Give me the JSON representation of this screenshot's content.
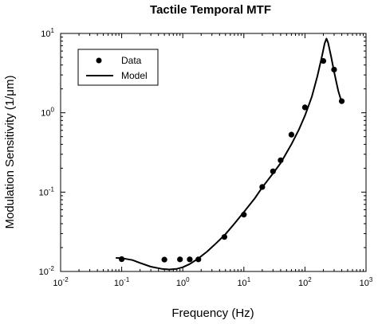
{
  "chart_data": {
    "type": "scatter",
    "title": "Tactile Temporal MTF",
    "xlabel": "Frequency (Hz)",
    "ylabel": "Modulation Sensitivity (1/μm)",
    "xscale": "log",
    "yscale": "log",
    "xlim": [
      0.01,
      1000
    ],
    "ylim": [
      0.01,
      10
    ],
    "x_ticks": [
      {
        "base": "10",
        "exp": "-2",
        "value": 0.01
      },
      {
        "base": "10",
        "exp": "-1",
        "value": 0.1
      },
      {
        "base": "10",
        "exp": "0",
        "value": 1
      },
      {
        "base": "10",
        "exp": "1",
        "value": 10
      },
      {
        "base": "10",
        "exp": "2",
        "value": 100
      },
      {
        "base": "10",
        "exp": "3",
        "value": 1000
      }
    ],
    "y_ticks": [
      {
        "base": "10",
        "exp": "-2",
        "value": 0.01
      },
      {
        "base": "10",
        "exp": "-1",
        "value": 0.1
      },
      {
        "base": "10",
        "exp": "0",
        "value": 1
      },
      {
        "base": "10",
        "exp": "1",
        "value": 10
      }
    ],
    "grid": false,
    "legend_position": "top-left",
    "series": [
      {
        "name": "Data",
        "kind": "points",
        "color": "#000000",
        "points": [
          [
            0.1,
            0.0143
          ],
          [
            0.5,
            0.0141
          ],
          [
            0.9,
            0.0142
          ],
          [
            1.3,
            0.0142
          ],
          [
            1.8,
            0.0142
          ],
          [
            4.8,
            0.0272
          ],
          [
            10,
            0.052
          ],
          [
            20,
            0.116
          ],
          [
            30,
            0.183
          ],
          [
            40,
            0.252
          ],
          [
            60,
            0.53
          ],
          [
            100,
            1.17
          ],
          [
            200,
            4.5
          ],
          [
            300,
            3.5
          ],
          [
            400,
            1.4
          ]
        ]
      },
      {
        "name": "Model",
        "kind": "line",
        "color": "#000000",
        "points": [
          [
            0.08,
            0.0148
          ],
          [
            0.1,
            0.0147
          ],
          [
            0.15,
            0.0139
          ],
          [
            0.2,
            0.0128
          ],
          [
            0.3,
            0.0115
          ],
          [
            0.45,
            0.0108
          ],
          [
            0.6,
            0.0106
          ],
          [
            0.8,
            0.0108
          ],
          [
            1.0,
            0.0113
          ],
          [
            1.3,
            0.0124
          ],
          [
            1.8,
            0.0146
          ],
          [
            2.5,
            0.0178
          ],
          [
            3.5,
            0.0226
          ],
          [
            5,
            0.0295
          ],
          [
            7,
            0.04
          ],
          [
            10,
            0.056
          ],
          [
            15,
            0.083
          ],
          [
            20,
            0.115
          ],
          [
            30,
            0.172
          ],
          [
            40,
            0.232
          ],
          [
            60,
            0.4
          ],
          [
            80,
            0.62
          ],
          [
            100,
            0.92
          ],
          [
            130,
            1.6
          ],
          [
            160,
            2.9
          ],
          [
            190,
            5.2
          ],
          [
            210,
            7.5
          ],
          [
            225,
            8.6
          ],
          [
            240,
            7.6
          ],
          [
            270,
            5.0
          ],
          [
            300,
            3.3
          ],
          [
            350,
            1.9
          ],
          [
            400,
            1.35
          ]
        ]
      }
    ]
  }
}
